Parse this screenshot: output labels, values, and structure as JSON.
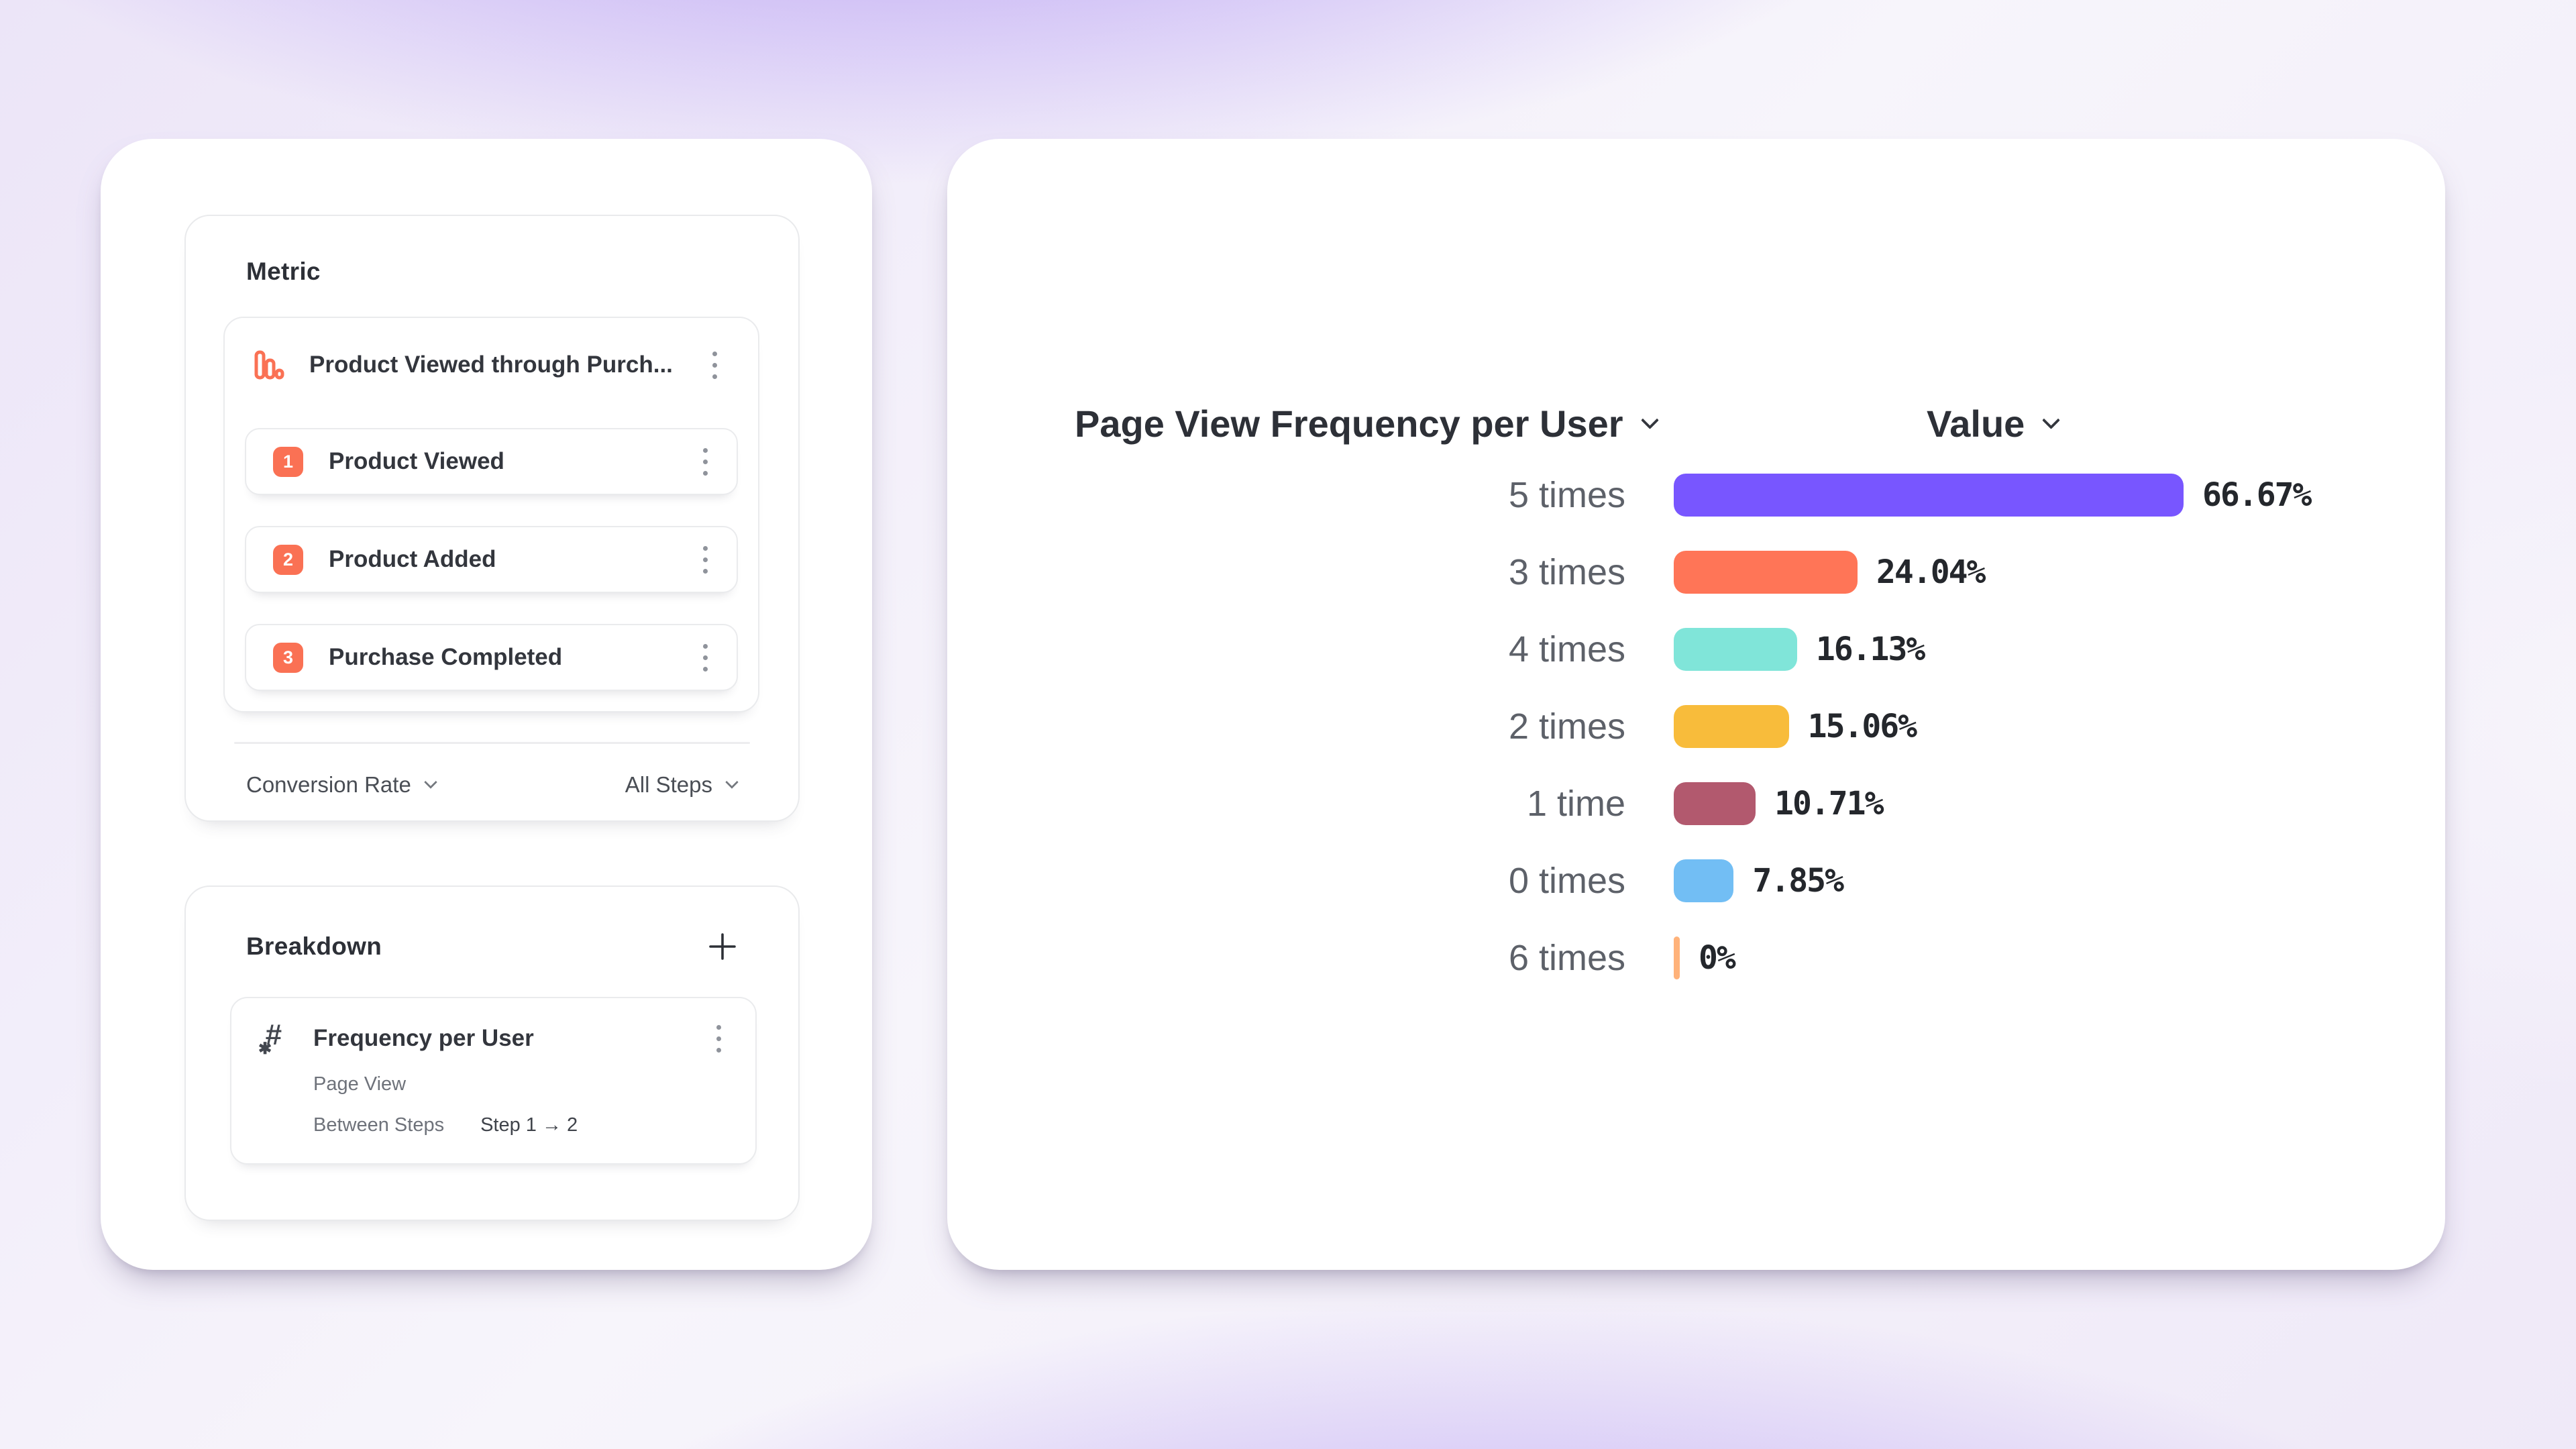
{
  "colors": {
    "accent_coral": "#FA7154",
    "card_border": "#e9eaec",
    "background_purple": "#9470f0"
  },
  "left_panel": {
    "metric_card": {
      "title": "Metric",
      "metric_group": {
        "icon": "bar-chart-icon",
        "name": "Product Viewed through Purch...",
        "steps": [
          {
            "number": "1",
            "label": "Product Viewed"
          },
          {
            "number": "2",
            "label": "Product Added"
          },
          {
            "number": "3",
            "label": "Purchase Completed"
          }
        ]
      },
      "footer": {
        "measure_dropdown": "Conversion Rate",
        "steps_dropdown": "All Steps"
      }
    },
    "breakdown_card": {
      "title": "Breakdown",
      "add_icon": "plus-icon",
      "item": {
        "icon": "numeric-property-icon",
        "title": "Frequency per User",
        "event": "Page View",
        "meta_label": "Between Steps",
        "meta_value": "Step 1 → 2"
      }
    }
  },
  "chart": {
    "series_header": "Page View Frequency per User",
    "value_header": "Value"
  },
  "chart_data": {
    "type": "bar",
    "orientation": "horizontal",
    "title": "Page View Frequency per User",
    "value_axis_label": "Value",
    "categories": [
      "5 times",
      "3 times",
      "4 times",
      "2 times",
      "1 time",
      "0 times",
      "6 times"
    ],
    "values": [
      66.67,
      24.04,
      16.13,
      15.06,
      10.71,
      7.85,
      0
    ],
    "value_labels": [
      "66.67%",
      "24.04%",
      "16.13%",
      "15.06%",
      "10.71%",
      "7.85%",
      "0%"
    ],
    "bar_colors": [
      "#7856FF",
      "#FF7557",
      "#80E5D9",
      "#F8BC3B",
      "#B2596E",
      "#72BEF4",
      "#FFB27A"
    ],
    "xlim": [
      0,
      66.67
    ],
    "sort": "descending",
    "grid": false,
    "legend": false
  }
}
